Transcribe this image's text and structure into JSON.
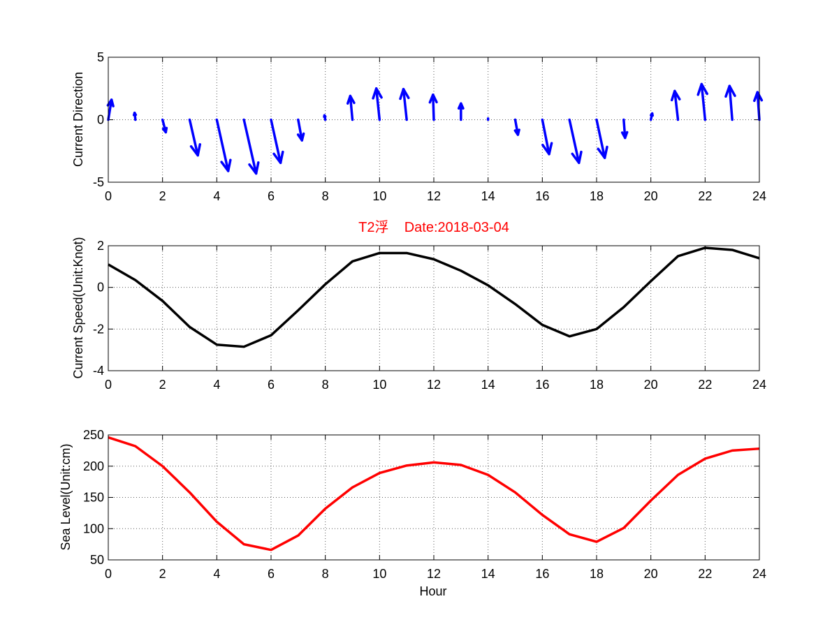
{
  "chart_data": [
    {
      "type": "quiver",
      "ylabel": "Current Direction",
      "xlim": [
        0,
        24
      ],
      "ylim": [
        -5,
        5
      ],
      "xticks": [
        "0",
        "2",
        "4",
        "6",
        "8",
        "10",
        "12",
        "14",
        "16",
        "18",
        "20",
        "22",
        "24"
      ],
      "yticks": [
        "-5",
        "0",
        "5"
      ],
      "grid": true,
      "color": "#0000ff",
      "arrows": [
        {
          "x": 0,
          "dx": 0.12,
          "dy": 1.6
        },
        {
          "x": 1,
          "dx": -0.03,
          "dy": 0.55
        },
        {
          "x": 2,
          "dx": 0.12,
          "dy": -1.0
        },
        {
          "x": 3,
          "dx": 0.3,
          "dy": -2.85
        },
        {
          "x": 4,
          "dx": 0.42,
          "dy": -4.1
        },
        {
          "x": 5,
          "dx": 0.45,
          "dy": -4.3
        },
        {
          "x": 6,
          "dx": 0.35,
          "dy": -3.45
        },
        {
          "x": 7,
          "dx": 0.14,
          "dy": -1.65
        },
        {
          "x": 8,
          "dx": -0.03,
          "dy": 0.35
        },
        {
          "x": 9,
          "dx": -0.08,
          "dy": 1.9
        },
        {
          "x": 10,
          "dx": -0.12,
          "dy": 2.5
        },
        {
          "x": 11,
          "dx": -0.12,
          "dy": 2.45
        },
        {
          "x": 12,
          "dx": -0.03,
          "dy": 2.0
        },
        {
          "x": 13,
          "dx": 0.0,
          "dy": 1.3
        },
        {
          "x": 14,
          "dx": 0.0,
          "dy": 0.1
        },
        {
          "x": 15,
          "dx": 0.1,
          "dy": -1.2
        },
        {
          "x": 16,
          "dx": 0.25,
          "dy": -2.75
        },
        {
          "x": 17,
          "dx": 0.35,
          "dy": -3.45
        },
        {
          "x": 18,
          "dx": 0.3,
          "dy": -3.05
        },
        {
          "x": 19,
          "dx": 0.05,
          "dy": -1.45
        },
        {
          "x": 20,
          "dx": 0.05,
          "dy": 0.5
        },
        {
          "x": 21,
          "dx": -0.12,
          "dy": 2.3
        },
        {
          "x": 22,
          "dx": -0.13,
          "dy": 2.85
        },
        {
          "x": 23,
          "dx": -0.1,
          "dy": 2.7
        },
        {
          "x": 24,
          "dx": -0.07,
          "dy": 2.2
        }
      ]
    },
    {
      "type": "line",
      "title": "T2浮    Date:2018-03-04",
      "ylabel": "Current Speed(Unit:Knot)",
      "xlim": [
        0,
        24
      ],
      "ylim": [
        -4,
        2
      ],
      "xticks": [
        "0",
        "2",
        "4",
        "6",
        "8",
        "10",
        "12",
        "14",
        "16",
        "18",
        "20",
        "22",
        "24"
      ],
      "yticks": [
        "-4",
        "-2",
        "0",
        "2"
      ],
      "grid": true,
      "color": "#000000",
      "x": [
        0,
        1,
        2,
        3,
        4,
        5,
        6,
        7,
        8,
        9,
        10,
        11,
        12,
        13,
        14,
        15,
        16,
        17,
        18,
        19,
        20,
        21,
        22,
        23,
        24
      ],
      "y": [
        1.1,
        0.35,
        -0.65,
        -1.9,
        -2.75,
        -2.85,
        -2.3,
        -1.1,
        0.15,
        1.25,
        1.65,
        1.65,
        1.35,
        0.8,
        0.1,
        -0.8,
        -1.8,
        -2.35,
        -2.0,
        -0.95,
        0.3,
        1.5,
        1.9,
        1.8,
        1.4
      ]
    },
    {
      "type": "line",
      "xlabel": "Hour",
      "ylabel": "Sea Level(Unit:cm)",
      "xlim": [
        0,
        24
      ],
      "ylim": [
        50,
        250
      ],
      "xticks": [
        "0",
        "2",
        "4",
        "6",
        "8",
        "10",
        "12",
        "14",
        "16",
        "18",
        "20",
        "22",
        "24"
      ],
      "yticks": [
        "50",
        "100",
        "150",
        "200",
        "250"
      ],
      "grid": true,
      "color": "#ff0000",
      "x": [
        0,
        1,
        2,
        3,
        4,
        5,
        6,
        7,
        8,
        9,
        10,
        11,
        12,
        13,
        14,
        15,
        16,
        17,
        18,
        19,
        20,
        21,
        22,
        23,
        24
      ],
      "y": [
        246,
        232,
        200,
        158,
        111,
        75,
        66,
        89,
        132,
        166,
        189,
        201,
        206,
        202,
        186,
        158,
        122,
        91,
        79,
        101,
        145,
        186,
        212,
        225,
        228
      ]
    }
  ]
}
